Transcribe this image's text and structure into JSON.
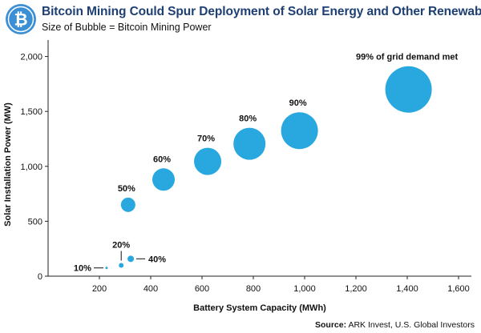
{
  "header": {
    "title": "Bitcoin Mining Could Spur Deployment of Solar Energy and Other Renewables",
    "subtitle": "Size of Bubble = Bitcoin Mining Power",
    "logo_icon": "bitcoin-logo-icon"
  },
  "footer": {
    "source_label": "Source:",
    "source_text": "ARK Invest, U.S. Global Investors"
  },
  "colors": {
    "bubble": "#29a8e0",
    "title": "#1e3f73",
    "logo_bg": "#3b8fd4",
    "axis": "#222222"
  },
  "chart_data": {
    "type": "scatter",
    "subtype": "bubble",
    "title": "Bitcoin Mining Could Spur Deployment of Solar Energy and Other Renewables",
    "subtitle": "Size of Bubble = Bitcoin Mining Power",
    "xlabel": "Battery System Capacity (MWh)",
    "ylabel": "Solar Installation Power (MW)",
    "xlim": [
      0,
      1650
    ],
    "ylim": [
      0,
      2150
    ],
    "x_ticks": [
      200,
      400,
      600,
      800,
      1000,
      1200,
      1400,
      1600
    ],
    "x_tick_labels": [
      "200",
      "400",
      "600",
      "800",
      "1,000",
      "1,200",
      "1,400",
      "1,600"
    ],
    "y_ticks": [
      0,
      500,
      1000,
      1500,
      2000
    ],
    "y_tick_labels": [
      "0",
      "500",
      "1,000",
      "1,500",
      "2,000"
    ],
    "grid": false,
    "points": [
      {
        "label": "10%",
        "x": 228,
        "y": 75,
        "size": 1.5
      },
      {
        "label": "20%",
        "x": 285,
        "y": 98,
        "size": 3
      },
      {
        "label": "40%",
        "x": 322,
        "y": 158,
        "size": 4
      },
      {
        "label": "50%",
        "x": 312,
        "y": 650,
        "size": 9
      },
      {
        "label": "60%",
        "x": 450,
        "y": 880,
        "size": 14
      },
      {
        "label": "70%",
        "x": 622,
        "y": 1045,
        "size": 17
      },
      {
        "label": "80%",
        "x": 785,
        "y": 1205,
        "size": 20
      },
      {
        "label": "90%",
        "x": 980,
        "y": 1325,
        "size": 23
      },
      {
        "label": "99% of grid demand met",
        "x": 1405,
        "y": 1700,
        "size": 29
      }
    ]
  }
}
